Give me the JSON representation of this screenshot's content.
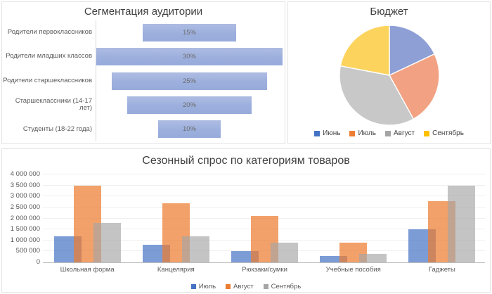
{
  "chart_data": [
    {
      "type": "bar",
      "variant": "horizontal-centered-funnel",
      "title": "Сегментация аудитории",
      "categories": [
        "Родители первоклассников",
        "Родители младших классов",
        "Родители старшеклассников",
        "Старшеклассники (14-17 лет)",
        "Студенты (18-22 года)"
      ],
      "values": [
        15,
        30,
        25,
        20,
        10
      ],
      "data_labels": [
        "15%",
        "30%",
        "25%",
        "20%",
        "10%"
      ],
      "xlim": [
        0,
        30
      ],
      "bar_color": "#9CAFDD",
      "axis_line_color": "#d9d9d9",
      "grid": false,
      "legend_position": "none"
    },
    {
      "type": "pie",
      "title": "Бюджет",
      "labels": [
        "Июнь",
        "Июль",
        "Август",
        "Сентябрь"
      ],
      "values_pct": [
        18,
        24,
        36,
        22
      ],
      "slice_colors": [
        "#8E9FD5",
        "#F2A282",
        "#C8C8C8",
        "#FCD35D"
      ],
      "legend_colors": [
        "#4472C4",
        "#ED7D31",
        "#A5A5A5",
        "#FFC000"
      ],
      "start_angle_deg": 0,
      "direction": "clockwise",
      "legend_position": "bottom"
    },
    {
      "type": "bar",
      "variant": "grouped-overlap",
      "title": "Сезонный спрос по категориям товаров",
      "categories": [
        "Школьная форма",
        "Канцелярия",
        "Рюкзаки/сумки",
        "Учебные пособия",
        "Гаджеты"
      ],
      "series": [
        {
          "name": "Июль",
          "color": "rgba(68,114,196,0.70)",
          "legend_color": "#4472C4",
          "values": [
            1200000,
            800000,
            500000,
            300000,
            1500000
          ]
        },
        {
          "name": "Август",
          "color": "rgba(237,125,49,0.72)",
          "legend_color": "#ED7D31",
          "values": [
            3500000,
            2700000,
            2100000,
            900000,
            2800000
          ]
        },
        {
          "name": "Сентябрь",
          "color": "rgba(165,165,165,0.66)",
          "legend_color": "#A5A5A5",
          "values": [
            1800000,
            1200000,
            900000,
            400000,
            3500000
          ]
        }
      ],
      "ylim": [
        0,
        4000000
      ],
      "ytick_step": 500000,
      "ytick_labels": [
        "0",
        "500 000",
        "1 000 000",
        "1 500 000",
        "2 000 000",
        "2 500 000",
        "3 000 000",
        "3 500 000",
        "4 000 000"
      ],
      "grid": true,
      "legend_position": "bottom"
    }
  ]
}
